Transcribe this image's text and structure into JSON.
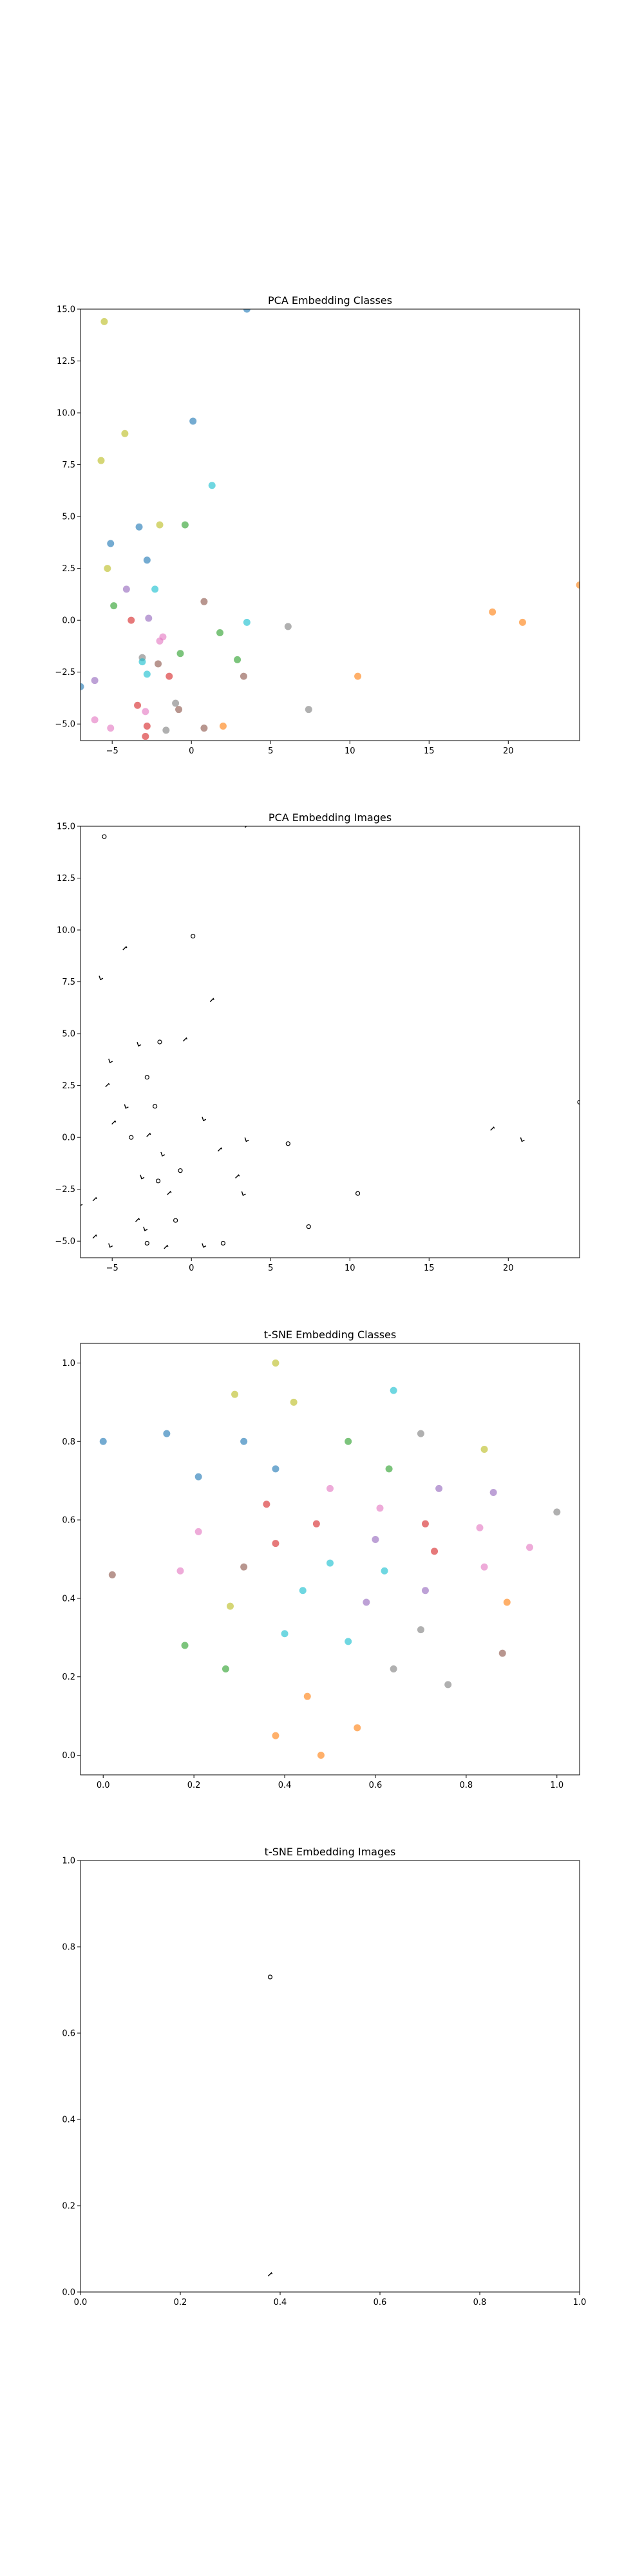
{
  "chart_data": [
    {
      "type": "scatter",
      "title": "PCA Embedding Classes",
      "xlim": [
        -7,
        24.5
      ],
      "ylim": [
        -5.8,
        15
      ],
      "x_ticks": [
        "−5",
        "0",
        "5",
        "10",
        "15",
        "20"
      ],
      "x_tick_values": [
        -5,
        0,
        5,
        10,
        15,
        20
      ],
      "y_ticks": [
        "−5.0",
        "−2.5",
        "0.0",
        "2.5",
        "5.0",
        "7.5",
        "10.0",
        "12.5",
        "15.0"
      ],
      "y_tick_values": [
        -5,
        -2.5,
        0,
        2.5,
        5,
        7.5,
        10,
        12.5,
        15
      ],
      "points": [
        {
          "x": -5.5,
          "y": 14.4,
          "color": "#bcbd22"
        },
        {
          "x": -4.2,
          "y": 9.0,
          "color": "#bcbd22"
        },
        {
          "x": -5.7,
          "y": 7.7,
          "color": "#bcbd22"
        },
        {
          "x": 0.1,
          "y": 9.6,
          "color": "#1f77b4"
        },
        {
          "x": 1.3,
          "y": 6.5,
          "color": "#17becf"
        },
        {
          "x": -3.3,
          "y": 4.5,
          "color": "#1f77b4"
        },
        {
          "x": -2.0,
          "y": 4.6,
          "color": "#bcbd22"
        },
        {
          "x": -0.4,
          "y": 4.6,
          "color": "#2ca02c"
        },
        {
          "x": -5.1,
          "y": 3.7,
          "color": "#1f77b4"
        },
        {
          "x": -2.8,
          "y": 2.9,
          "color": "#1f77b4"
        },
        {
          "x": -5.3,
          "y": 2.5,
          "color": "#bcbd22"
        },
        {
          "x": -4.1,
          "y": 1.5,
          "color": "#9467bd"
        },
        {
          "x": -2.3,
          "y": 1.5,
          "color": "#17becf"
        },
        {
          "x": -4.9,
          "y": 0.7,
          "color": "#2ca02c"
        },
        {
          "x": 0.8,
          "y": 0.9,
          "color": "#8c564b"
        },
        {
          "x": -3.8,
          "y": 0.0,
          "color": "#d62728"
        },
        {
          "x": -2.7,
          "y": 0.1,
          "color": "#9467bd"
        },
        {
          "x": 3.5,
          "y": -0.1,
          "color": "#17becf"
        },
        {
          "x": 6.1,
          "y": -0.3,
          "color": "#7f7f7f"
        },
        {
          "x": 1.8,
          "y": -0.6,
          "color": "#2ca02c"
        },
        {
          "x": -1.8,
          "y": -0.8,
          "color": "#e377c2"
        },
        {
          "x": -2.0,
          "y": -1.0,
          "color": "#e377c2"
        },
        {
          "x": -0.7,
          "y": -1.6,
          "color": "#2ca02c"
        },
        {
          "x": 2.9,
          "y": -1.9,
          "color": "#2ca02c"
        },
        {
          "x": -3.1,
          "y": -1.8,
          "color": "#7f7f7f"
        },
        {
          "x": -3.1,
          "y": -2.0,
          "color": "#17becf"
        },
        {
          "x": -2.1,
          "y": -2.1,
          "color": "#8c564b"
        },
        {
          "x": -2.8,
          "y": -2.6,
          "color": "#17becf"
        },
        {
          "x": -1.4,
          "y": -2.7,
          "color": "#d62728"
        },
        {
          "x": 3.3,
          "y": -2.7,
          "color": "#8c564b"
        },
        {
          "x": 10.5,
          "y": -2.7,
          "color": "#ff7f0e"
        },
        {
          "x": -6.1,
          "y": -2.9,
          "color": "#9467bd"
        },
        {
          "x": -7.0,
          "y": -3.2,
          "color": "#1f77b4"
        },
        {
          "x": -1.0,
          "y": -4.0,
          "color": "#7f7f7f"
        },
        {
          "x": -0.8,
          "y": -4.3,
          "color": "#8c564b"
        },
        {
          "x": -3.4,
          "y": -4.1,
          "color": "#d62728"
        },
        {
          "x": -2.9,
          "y": -4.4,
          "color": "#e377c2"
        },
        {
          "x": 7.4,
          "y": -4.3,
          "color": "#7f7f7f"
        },
        {
          "x": -6.1,
          "y": -4.8,
          "color": "#e377c2"
        },
        {
          "x": -5.1,
          "y": -5.2,
          "color": "#e377c2"
        },
        {
          "x": -2.8,
          "y": -5.1,
          "color": "#d62728"
        },
        {
          "x": -1.6,
          "y": -5.3,
          "color": "#7f7f7f"
        },
        {
          "x": 0.8,
          "y": -5.2,
          "color": "#8c564b"
        },
        {
          "x": 2.0,
          "y": -5.1,
          "color": "#ff7f0e"
        },
        {
          "x": -2.9,
          "y": -5.6,
          "color": "#d62728"
        },
        {
          "x": 19.0,
          "y": 0.4,
          "color": "#ff7f0e"
        },
        {
          "x": 20.9,
          "y": -0.1,
          "color": "#ff7f0e"
        },
        {
          "x": 24.5,
          "y": 1.7,
          "color": "#ff7f0e"
        },
        {
          "x": 3.5,
          "y": 15.0,
          "color": "#1f77b4"
        }
      ]
    },
    {
      "type": "scatter",
      "title": "PCA Embedding Images",
      "xlim": [
        -7,
        24.5
      ],
      "ylim": [
        -5.8,
        15
      ],
      "x_ticks": [
        "−5",
        "0",
        "5",
        "10",
        "15",
        "20"
      ],
      "x_tick_values": [
        -5,
        0,
        5,
        10,
        15,
        20
      ],
      "y_ticks": [
        "−5.0",
        "−2.5",
        "0.0",
        "2.5",
        "5.0",
        "7.5",
        "10.0",
        "12.5",
        "15.0"
      ],
      "y_tick_values": [
        -5,
        -2.5,
        0,
        2.5,
        5,
        7.5,
        10,
        12.5,
        15
      ],
      "points": [
        {
          "x": -5.5,
          "y": 14.5
        },
        {
          "x": -4.2,
          "y": 9.1
        },
        {
          "x": -5.7,
          "y": 7.7
        },
        {
          "x": 0.1,
          "y": 9.7
        },
        {
          "x": 1.3,
          "y": 6.6
        },
        {
          "x": -3.3,
          "y": 4.5
        },
        {
          "x": -2.0,
          "y": 4.6
        },
        {
          "x": -0.4,
          "y": 4.7
        },
        {
          "x": -5.1,
          "y": 3.7
        },
        {
          "x": -2.8,
          "y": 2.9
        },
        {
          "x": -5.3,
          "y": 2.5
        },
        {
          "x": -4.1,
          "y": 1.5
        },
        {
          "x": -2.3,
          "y": 1.5
        },
        {
          "x": -4.9,
          "y": 0.7
        },
        {
          "x": 0.8,
          "y": 0.9
        },
        {
          "x": -3.8,
          "y": 0.0
        },
        {
          "x": -2.7,
          "y": 0.1
        },
        {
          "x": 3.5,
          "y": -0.1
        },
        {
          "x": 6.1,
          "y": -0.3
        },
        {
          "x": 1.8,
          "y": -0.6
        },
        {
          "x": -1.8,
          "y": -0.8
        },
        {
          "x": -0.7,
          "y": -1.6
        },
        {
          "x": 2.9,
          "y": -1.9
        },
        {
          "x": -3.1,
          "y": -1.9
        },
        {
          "x": -2.1,
          "y": -2.1
        },
        {
          "x": -1.4,
          "y": -2.7
        },
        {
          "x": 3.3,
          "y": -2.7
        },
        {
          "x": 10.5,
          "y": -2.7
        },
        {
          "x": -6.1,
          "y": -3.0
        },
        {
          "x": -7.0,
          "y": -3.2
        },
        {
          "x": -1.0,
          "y": -4.0
        },
        {
          "x": -3.4,
          "y": -4.0
        },
        {
          "x": -2.9,
          "y": -4.4
        },
        {
          "x": 7.4,
          "y": -4.3
        },
        {
          "x": -6.1,
          "y": -4.8
        },
        {
          "x": -5.1,
          "y": -5.2
        },
        {
          "x": -2.8,
          "y": -5.1
        },
        {
          "x": -1.6,
          "y": -5.3
        },
        {
          "x": 0.8,
          "y": -5.2
        },
        {
          "x": 2.0,
          "y": -5.1
        },
        {
          "x": 19.0,
          "y": 0.4
        },
        {
          "x": 20.9,
          "y": -0.1
        },
        {
          "x": 24.5,
          "y": 1.7
        },
        {
          "x": 3.5,
          "y": 15.0
        }
      ]
    },
    {
      "type": "scatter",
      "title": "t-SNE Embedding Classes",
      "xlim": [
        -0.05,
        1.05
      ],
      "ylim": [
        -0.05,
        1.05
      ],
      "x_ticks": [
        "0.0",
        "0.2",
        "0.4",
        "0.6",
        "0.8",
        "1.0"
      ],
      "x_tick_values": [
        0,
        0.2,
        0.4,
        0.6,
        0.8,
        1.0
      ],
      "y_ticks": [
        "0.0",
        "0.2",
        "0.4",
        "0.6",
        "0.8",
        "1.0"
      ],
      "y_tick_values": [
        0,
        0.2,
        0.4,
        0.6,
        0.8,
        1.0
      ],
      "points": [
        {
          "x": 0.38,
          "y": 1.0,
          "color": "#bcbd22"
        },
        {
          "x": 0.42,
          "y": 0.9,
          "color": "#bcbd22"
        },
        {
          "x": 0.29,
          "y": 0.92,
          "color": "#bcbd22"
        },
        {
          "x": 0.64,
          "y": 0.93,
          "color": "#17becf"
        },
        {
          "x": 0.0,
          "y": 0.8,
          "color": "#1f77b4"
        },
        {
          "x": 0.14,
          "y": 0.82,
          "color": "#1f77b4"
        },
        {
          "x": 0.31,
          "y": 0.8,
          "color": "#1f77b4"
        },
        {
          "x": 0.54,
          "y": 0.8,
          "color": "#2ca02c"
        },
        {
          "x": 0.7,
          "y": 0.82,
          "color": "#7f7f7f"
        },
        {
          "x": 0.84,
          "y": 0.78,
          "color": "#bcbd22"
        },
        {
          "x": 0.21,
          "y": 0.71,
          "color": "#1f77b4"
        },
        {
          "x": 0.38,
          "y": 0.73,
          "color": "#1f77b4"
        },
        {
          "x": 0.63,
          "y": 0.73,
          "color": "#2ca02c"
        },
        {
          "x": 0.74,
          "y": 0.68,
          "color": "#9467bd"
        },
        {
          "x": 0.86,
          "y": 0.67,
          "color": "#9467bd"
        },
        {
          "x": 0.36,
          "y": 0.64,
          "color": "#d62728"
        },
        {
          "x": 0.5,
          "y": 0.68,
          "color": "#e377c2"
        },
        {
          "x": 0.61,
          "y": 0.63,
          "color": "#e377c2"
        },
        {
          "x": 1.0,
          "y": 0.62,
          "color": "#7f7f7f"
        },
        {
          "x": 0.21,
          "y": 0.57,
          "color": "#e377c2"
        },
        {
          "x": 0.47,
          "y": 0.59,
          "color": "#d62728"
        },
        {
          "x": 0.71,
          "y": 0.59,
          "color": "#d62728"
        },
        {
          "x": 0.83,
          "y": 0.58,
          "color": "#e377c2"
        },
        {
          "x": 0.38,
          "y": 0.54,
          "color": "#d62728"
        },
        {
          "x": 0.6,
          "y": 0.55,
          "color": "#9467bd"
        },
        {
          "x": 0.94,
          "y": 0.53,
          "color": "#e377c2"
        },
        {
          "x": 0.73,
          "y": 0.52,
          "color": "#d62728"
        },
        {
          "x": 0.5,
          "y": 0.49,
          "color": "#17becf"
        },
        {
          "x": 0.31,
          "y": 0.48,
          "color": "#8c564b"
        },
        {
          "x": 0.17,
          "y": 0.47,
          "color": "#e377c2"
        },
        {
          "x": 0.62,
          "y": 0.47,
          "color": "#17becf"
        },
        {
          "x": 0.84,
          "y": 0.48,
          "color": "#e377c2"
        },
        {
          "x": 0.02,
          "y": 0.46,
          "color": "#8c564b"
        },
        {
          "x": 0.44,
          "y": 0.42,
          "color": "#17becf"
        },
        {
          "x": 0.71,
          "y": 0.42,
          "color": "#9467bd"
        },
        {
          "x": 0.58,
          "y": 0.39,
          "color": "#9467bd"
        },
        {
          "x": 0.89,
          "y": 0.39,
          "color": "#ff7f0e"
        },
        {
          "x": 0.28,
          "y": 0.38,
          "color": "#bcbd22"
        },
        {
          "x": 0.7,
          "y": 0.32,
          "color": "#7f7f7f"
        },
        {
          "x": 0.4,
          "y": 0.31,
          "color": "#17becf"
        },
        {
          "x": 0.54,
          "y": 0.29,
          "color": "#17becf"
        },
        {
          "x": 0.18,
          "y": 0.28,
          "color": "#2ca02c"
        },
        {
          "x": 0.88,
          "y": 0.26,
          "color": "#8c564b"
        },
        {
          "x": 0.27,
          "y": 0.22,
          "color": "#2ca02c"
        },
        {
          "x": 0.64,
          "y": 0.22,
          "color": "#7f7f7f"
        },
        {
          "x": 0.76,
          "y": 0.18,
          "color": "#7f7f7f"
        },
        {
          "x": 0.45,
          "y": 0.15,
          "color": "#ff7f0e"
        },
        {
          "x": 0.56,
          "y": 0.07,
          "color": "#ff7f0e"
        },
        {
          "x": 0.38,
          "y": 0.05,
          "color": "#ff7f0e"
        },
        {
          "x": 0.48,
          "y": 0.0,
          "color": "#ff7f0e"
        }
      ]
    },
    {
      "type": "scatter",
      "title": "t-SNE Embedding Images",
      "xlim": [
        0,
        1
      ],
      "ylim": [
        0,
        1
      ],
      "x_ticks": [
        "0.0",
        "0.2",
        "0.4",
        "0.6",
        "0.8",
        "1.0"
      ],
      "x_tick_values": [
        0,
        0.2,
        0.4,
        0.6,
        0.8,
        1.0
      ],
      "y_ticks": [
        "0.0",
        "0.2",
        "0.4",
        "0.6",
        "0.8",
        "1.0"
      ],
      "y_tick_values": [
        0,
        0.2,
        0.4,
        0.6,
        0.8,
        1.0
      ],
      "points": [
        {
          "x": 0.38,
          "y": 0.73
        },
        {
          "x": 0.38,
          "y": 0.04
        }
      ]
    }
  ]
}
